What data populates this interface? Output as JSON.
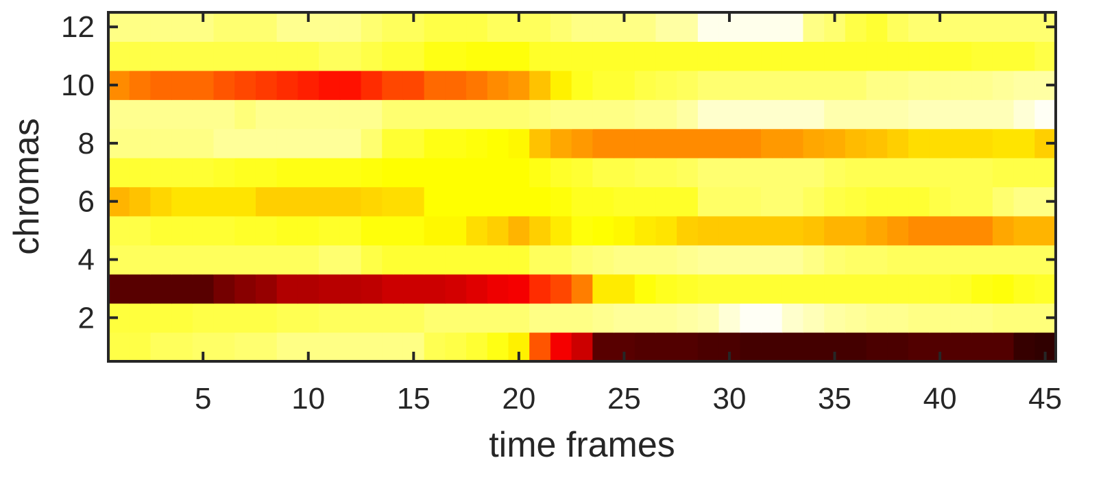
{
  "chart_data": {
    "type": "heatmap",
    "title": "",
    "xlabel": "time frames",
    "ylabel": "chromas",
    "x": [
      1,
      2,
      3,
      4,
      5,
      6,
      7,
      8,
      9,
      10,
      11,
      12,
      13,
      14,
      15,
      16,
      17,
      18,
      19,
      20,
      21,
      22,
      23,
      24,
      25,
      26,
      27,
      28,
      29,
      30,
      31,
      32,
      33,
      34,
      35,
      36,
      37,
      38,
      39,
      40,
      41,
      42,
      43,
      44,
      45
    ],
    "y": [
      1,
      2,
      3,
      4,
      5,
      6,
      7,
      8,
      9,
      10,
      11,
      12
    ],
    "xlim": [
      0.5,
      45.5
    ],
    "ylim": [
      0.5,
      12.5
    ],
    "xticks": [
      5,
      10,
      15,
      20,
      25,
      30,
      35,
      40,
      45
    ],
    "yticks": [
      2,
      4,
      6,
      8,
      10,
      12
    ],
    "colormap": "hot",
    "value_range": [
      0,
      1
    ],
    "grid": false,
    "legend": "none",
    "values": [
      [
        0.82,
        0.82,
        0.84,
        0.84,
        0.85,
        0.85,
        0.86,
        0.86,
        0.88,
        0.88,
        0.88,
        0.88,
        0.88,
        0.88,
        0.88,
        0.83,
        0.82,
        0.8,
        0.77,
        0.73,
        0.5,
        0.36,
        0.3,
        0.13,
        0.13,
        0.12,
        0.12,
        0.12,
        0.11,
        0.11,
        0.1,
        0.1,
        0.1,
        0.1,
        0.1,
        0.1,
        0.11,
        0.11,
        0.12,
        0.12,
        0.12,
        0.12,
        0.12,
        0.08,
        0.07
      ],
      [
        0.81,
        0.81,
        0.81,
        0.81,
        0.82,
        0.82,
        0.82,
        0.82,
        0.83,
        0.83,
        0.84,
        0.84,
        0.84,
        0.84,
        0.84,
        0.86,
        0.86,
        0.86,
        0.86,
        0.86,
        0.88,
        0.88,
        0.88,
        0.89,
        0.9,
        0.9,
        0.9,
        0.91,
        0.92,
        0.96,
        0.99,
        0.99,
        0.95,
        0.93,
        0.91,
        0.9,
        0.89,
        0.89,
        0.88,
        0.88,
        0.88,
        0.88,
        0.87,
        0.87,
        0.87
      ],
      [
        0.13,
        0.13,
        0.13,
        0.13,
        0.13,
        0.17,
        0.2,
        0.22,
        0.26,
        0.26,
        0.27,
        0.27,
        0.28,
        0.3,
        0.3,
        0.3,
        0.31,
        0.33,
        0.35,
        0.36,
        0.44,
        0.48,
        0.56,
        0.72,
        0.72,
        0.76,
        0.78,
        0.79,
        0.8,
        0.8,
        0.8,
        0.8,
        0.8,
        0.8,
        0.8,
        0.8,
        0.8,
        0.8,
        0.8,
        0.8,
        0.79,
        0.77,
        0.76,
        0.78,
        0.79
      ],
      [
        0.84,
        0.84,
        0.84,
        0.84,
        0.84,
        0.84,
        0.84,
        0.84,
        0.84,
        0.84,
        0.86,
        0.86,
        0.82,
        0.8,
        0.8,
        0.8,
        0.8,
        0.8,
        0.8,
        0.8,
        0.84,
        0.84,
        0.86,
        0.87,
        0.88,
        0.88,
        0.88,
        0.89,
        0.9,
        0.9,
        0.9,
        0.9,
        0.9,
        0.88,
        0.86,
        0.85,
        0.85,
        0.84,
        0.84,
        0.84,
        0.84,
        0.84,
        0.84,
        0.84,
        0.84
      ],
      [
        0.82,
        0.82,
        0.8,
        0.8,
        0.8,
        0.8,
        0.79,
        0.79,
        0.78,
        0.78,
        0.79,
        0.79,
        0.76,
        0.76,
        0.76,
        0.74,
        0.74,
        0.7,
        0.68,
        0.64,
        0.68,
        0.72,
        0.76,
        0.75,
        0.74,
        0.72,
        0.71,
        0.68,
        0.67,
        0.67,
        0.67,
        0.67,
        0.67,
        0.66,
        0.64,
        0.64,
        0.62,
        0.6,
        0.58,
        0.58,
        0.58,
        0.58,
        0.62,
        0.64,
        0.64
      ],
      [
        0.64,
        0.66,
        0.69,
        0.71,
        0.71,
        0.71,
        0.71,
        0.68,
        0.68,
        0.68,
        0.68,
        0.68,
        0.69,
        0.7,
        0.7,
        0.75,
        0.75,
        0.75,
        0.75,
        0.75,
        0.75,
        0.76,
        0.78,
        0.78,
        0.79,
        0.79,
        0.79,
        0.79,
        0.85,
        0.85,
        0.85,
        0.86,
        0.86,
        0.84,
        0.82,
        0.81,
        0.8,
        0.8,
        0.8,
        0.82,
        0.83,
        0.83,
        0.86,
        0.88,
        0.88
      ],
      [
        0.8,
        0.8,
        0.8,
        0.8,
        0.8,
        0.79,
        0.78,
        0.78,
        0.77,
        0.77,
        0.77,
        0.77,
        0.76,
        0.75,
        0.75,
        0.75,
        0.75,
        0.75,
        0.75,
        0.75,
        0.77,
        0.79,
        0.8,
        0.82,
        0.82,
        0.83,
        0.83,
        0.84,
        0.86,
        0.86,
        0.86,
        0.86,
        0.86,
        0.86,
        0.84,
        0.83,
        0.83,
        0.83,
        0.83,
        0.83,
        0.83,
        0.83,
        0.82,
        0.82,
        0.82
      ],
      [
        0.88,
        0.88,
        0.88,
        0.88,
        0.88,
        0.9,
        0.9,
        0.9,
        0.9,
        0.9,
        0.9,
        0.9,
        0.86,
        0.8,
        0.8,
        0.77,
        0.77,
        0.76,
        0.75,
        0.74,
        0.66,
        0.62,
        0.6,
        0.58,
        0.58,
        0.58,
        0.58,
        0.58,
        0.58,
        0.58,
        0.58,
        0.6,
        0.6,
        0.62,
        0.63,
        0.65,
        0.66,
        0.68,
        0.7,
        0.7,
        0.7,
        0.7,
        0.71,
        0.71,
        0.68
      ],
      [
        0.89,
        0.89,
        0.89,
        0.89,
        0.89,
        0.89,
        0.87,
        0.89,
        0.89,
        0.89,
        0.89,
        0.89,
        0.89,
        0.86,
        0.86,
        0.86,
        0.86,
        0.86,
        0.86,
        0.86,
        0.87,
        0.88,
        0.88,
        0.88,
        0.88,
        0.89,
        0.89,
        0.91,
        0.95,
        0.95,
        0.95,
        0.95,
        0.95,
        0.95,
        0.92,
        0.92,
        0.92,
        0.92,
        0.93,
        0.93,
        0.93,
        0.93,
        0.93,
        0.96,
        0.99
      ],
      [
        0.58,
        0.55,
        0.53,
        0.53,
        0.53,
        0.5,
        0.48,
        0.46,
        0.44,
        0.42,
        0.4,
        0.4,
        0.44,
        0.48,
        0.48,
        0.53,
        0.53,
        0.55,
        0.58,
        0.6,
        0.66,
        0.73,
        0.78,
        0.8,
        0.8,
        0.82,
        0.83,
        0.84,
        0.86,
        0.86,
        0.86,
        0.86,
        0.86,
        0.86,
        0.86,
        0.86,
        0.88,
        0.88,
        0.89,
        0.89,
        0.89,
        0.89,
        0.9,
        0.91,
        0.91
      ],
      [
        0.82,
        0.82,
        0.82,
        0.82,
        0.82,
        0.82,
        0.82,
        0.82,
        0.82,
        0.82,
        0.84,
        0.84,
        0.82,
        0.8,
        0.8,
        0.77,
        0.77,
        0.76,
        0.76,
        0.76,
        0.79,
        0.79,
        0.79,
        0.79,
        0.79,
        0.79,
        0.79,
        0.79,
        0.79,
        0.79,
        0.79,
        0.79,
        0.79,
        0.79,
        0.79,
        0.79,
        0.79,
        0.79,
        0.79,
        0.79,
        0.79,
        0.8,
        0.8,
        0.8,
        0.82
      ],
      [
        0.88,
        0.88,
        0.88,
        0.88,
        0.88,
        0.86,
        0.86,
        0.86,
        0.89,
        0.89,
        0.89,
        0.89,
        0.86,
        0.84,
        0.84,
        0.82,
        0.82,
        0.82,
        0.84,
        0.84,
        0.84,
        0.86,
        0.88,
        0.88,
        0.88,
        0.88,
        0.91,
        0.91,
        0.98,
        0.98,
        0.98,
        0.98,
        0.98,
        0.88,
        0.86,
        0.82,
        0.8,
        0.84,
        0.86,
        0.86,
        0.86,
        0.86,
        0.86,
        0.86,
        0.86
      ]
    ]
  }
}
